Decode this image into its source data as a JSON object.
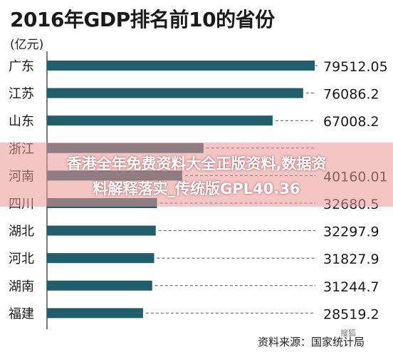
{
  "chart_data": {
    "type": "bar",
    "orientation": "horizontal",
    "title": "2016年GDP排名前10的省份",
    "unit_label": "(亿元)",
    "categories": [
      "广东",
      "江苏",
      "山东",
      "浙江",
      "河南",
      "四川",
      "湖北",
      "河北",
      "湖南",
      "福建"
    ],
    "values": [
      79512.05,
      76086.2,
      67008.2,
      46485,
      40160.01,
      32680.5,
      32297.9,
      31827.9,
      31244.7,
      28519.2
    ],
    "value_labels": [
      "79512.05",
      "76086.2",
      "67008.2",
      "",
      "40160.01",
      "32680.5",
      "32297.9",
      "31827.9",
      "31244.7",
      "28519.2"
    ],
    "bar_color": "#1f5f6b",
    "leader_line": "dashed",
    "grid": false
  },
  "source_note": "资料来源：国家统计局",
  "watermark": "搜狐",
  "overlay": {
    "line1": "香港全年免费资料大全正版资料,数据资",
    "line2": "料解释落实_传统版GPL40.36"
  }
}
